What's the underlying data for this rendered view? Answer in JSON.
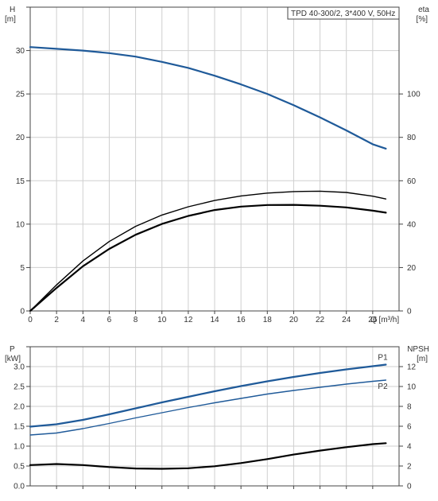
{
  "chart_data": [
    {
      "type": "line",
      "title": "TPD 40-300/2, 3*400 V, 50Hz",
      "xlabel": "Q [m³/h]",
      "ylabel_left": [
        "H",
        "[m]"
      ],
      "ylabel_right": [
        "eta",
        "[%]"
      ],
      "xlim": [
        0,
        28
      ],
      "ylim_left": [
        0,
        35
      ],
      "ylim_right": [
        0,
        140
      ],
      "x_ticks": [
        "0",
        "2",
        "4",
        "6",
        "8",
        "10",
        "12",
        "14",
        "16",
        "18",
        "20",
        "22",
        "24",
        "26"
      ],
      "y_ticks_left": [
        "0",
        "5",
        "10",
        "15",
        "20",
        "25",
        "30"
      ],
      "y_ticks_right": [
        "0",
        "20",
        "40",
        "60",
        "80",
        "100"
      ],
      "grid": true,
      "series": [
        {
          "axis": "left",
          "color": "#1f5a99",
          "x": [
            0,
            2,
            4,
            6,
            8,
            10,
            12,
            14,
            16,
            18,
            20,
            22,
            24,
            26,
            27
          ],
          "y": [
            30.4,
            30.2,
            30.0,
            29.7,
            29.3,
            28.7,
            28.0,
            27.1,
            26.1,
            25.0,
            23.7,
            22.3,
            20.8,
            19.2,
            18.7
          ]
        },
        {
          "axis": "right",
          "color": "#000000",
          "x": [
            0,
            2,
            4,
            6,
            8,
            10,
            12,
            14,
            16,
            18,
            20,
            22,
            24,
            26,
            27
          ],
          "y": [
            0,
            10.6,
            20.6,
            28.6,
            35.1,
            40.1,
            43.8,
            46.5,
            48.1,
            48.8,
            48.9,
            48.5,
            47.7,
            46.2,
            45.3
          ]
        },
        {
          "axis": "right",
          "color": "#000000",
          "x": [
            0,
            2,
            4,
            6,
            8,
            10,
            12,
            14,
            16,
            18,
            20,
            22,
            24,
            26,
            27
          ],
          "y": [
            0,
            12.0,
            23.0,
            32.0,
            39.0,
            44.2,
            48.0,
            50.9,
            53.0,
            54.3,
            55.0,
            55.2,
            54.6,
            52.9,
            51.6
          ]
        }
      ]
    },
    {
      "type": "line",
      "ylabel_left": [
        "P",
        "[kW]"
      ],
      "ylabel_right": [
        "NPSH",
        "[m]"
      ],
      "xlim": [
        0,
        28
      ],
      "ylim_left": [
        0,
        3.5
      ],
      "ylim_right": [
        0,
        14
      ],
      "y_ticks_left": [
        "0.0",
        "0.5",
        "1.0",
        "1.5",
        "2.0",
        "2.5",
        "3.0"
      ],
      "y_ticks_right": [
        "0",
        "2",
        "4",
        "6",
        "8",
        "10",
        "12"
      ],
      "grid": true,
      "series": [
        {
          "name": "P1",
          "axis": "left",
          "color": "#1f5a99",
          "x": [
            0,
            2,
            4,
            6,
            8,
            10,
            12,
            14,
            16,
            18,
            20,
            22,
            24,
            26,
            27
          ],
          "y": [
            1.49,
            1.55,
            1.66,
            1.8,
            1.95,
            2.1,
            2.24,
            2.38,
            2.51,
            2.63,
            2.74,
            2.84,
            2.93,
            3.01,
            3.05
          ]
        },
        {
          "name": "P2",
          "axis": "left",
          "color": "#1f5a99",
          "x": [
            0,
            2,
            4,
            6,
            8,
            10,
            12,
            14,
            16,
            18,
            20,
            22,
            24,
            26,
            27
          ],
          "y": [
            1.28,
            1.33,
            1.44,
            1.57,
            1.71,
            1.84,
            1.97,
            2.09,
            2.2,
            2.31,
            2.4,
            2.48,
            2.56,
            2.63,
            2.66
          ]
        },
        {
          "axis": "right",
          "color": "#000000",
          "x": [
            0,
            2,
            4,
            6,
            8,
            10,
            12,
            14,
            16,
            18,
            20,
            22,
            24,
            26,
            27
          ],
          "y": [
            2.1,
            2.2,
            2.1,
            1.9,
            1.75,
            1.72,
            1.78,
            1.98,
            2.3,
            2.7,
            3.15,
            3.55,
            3.9,
            4.2,
            4.3
          ]
        }
      ]
    }
  ]
}
